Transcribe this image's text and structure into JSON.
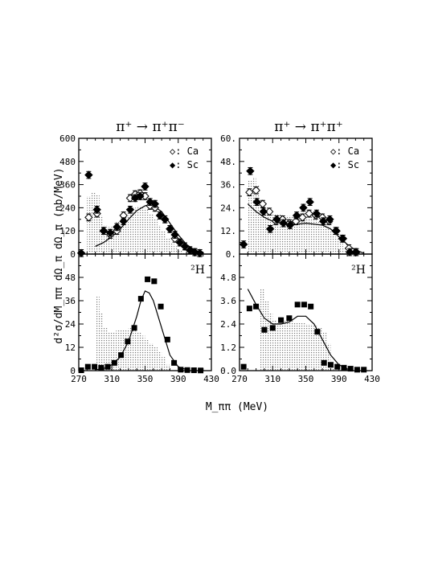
{
  "chart_data": [
    {
      "type": "scatter",
      "panel": "top-left",
      "title": "π⁺ → π⁺π⁻",
      "x_range": [
        270,
        430
      ],
      "ylim": [
        0,
        600
      ],
      "y_ticks": [
        0,
        120,
        240,
        360,
        480,
        600
      ],
      "legend": [
        "◇: Ca",
        "◆: Sc"
      ],
      "legend_placement": "top-right",
      "series": [
        {
          "name": "Ca",
          "marker": "open-diamond",
          "x": [
            282,
            292,
            300,
            308,
            316,
            324,
            332,
            338,
            344,
            350,
            356,
            362,
            368,
            374,
            380,
            386,
            392,
            398,
            404,
            410,
            416
          ],
          "y": [
            190,
            210,
            120,
            100,
            120,
            200,
            290,
            310,
            315,
            300,
            250,
            240,
            200,
            180,
            130,
            80,
            60,
            40,
            20,
            10,
            5
          ]
        },
        {
          "name": "Sc",
          "marker": "filled-diamond",
          "x": [
            273,
            282,
            292,
            300,
            308,
            316,
            324,
            332,
            338,
            344,
            350,
            356,
            362,
            368,
            374,
            380,
            386,
            392,
            398,
            404,
            410,
            416
          ],
          "y": [
            5,
            410,
            230,
            120,
            110,
            140,
            170,
            230,
            290,
            300,
            350,
            270,
            260,
            200,
            180,
            130,
            100,
            60,
            40,
            20,
            10,
            5
          ]
        }
      ],
      "curve": {
        "x": [
          290,
          300,
          310,
          320,
          330,
          340,
          350,
          355,
          360,
          370,
          380,
          390,
          400,
          410,
          420
        ],
        "y": [
          40,
          60,
          90,
          130,
          180,
          225,
          250,
          255,
          250,
          220,
          160,
          100,
          50,
          20,
          5
        ]
      },
      "histogram": {
        "x": [
          280,
          285,
          290,
          295,
          300,
          305,
          310,
          315,
          320,
          325,
          330,
          335,
          340,
          345,
          350,
          355,
          360,
          365,
          370,
          375,
          380,
          385,
          390,
          395,
          400,
          405
        ],
        "y": [
          300,
          320,
          310,
          200,
          150,
          140,
          150,
          170,
          180,
          200,
          220,
          240,
          250,
          240,
          230,
          210,
          180,
          150,
          120,
          80,
          60,
          40,
          20,
          10,
          5,
          0
        ]
      }
    },
    {
      "type": "scatter",
      "panel": "top-right",
      "title": "π⁺ → π⁺π⁺",
      "x_range": [
        270,
        430
      ],
      "ylim": [
        0,
        60
      ],
      "y_ticks": [
        "0.",
        "12.",
        "24.",
        "36.",
        "48.",
        "60."
      ],
      "legend": [
        "◇: Ca",
        "◆: Sc"
      ],
      "legend_placement": "top-right",
      "series": [
        {
          "name": "Ca",
          "marker": "open-diamond",
          "x": [
            282,
            290,
            298,
            306,
            314,
            322,
            330,
            338,
            346,
            354,
            362,
            370,
            378,
            386,
            394,
            402,
            410
          ],
          "y": [
            32,
            33,
            26,
            22,
            17,
            18,
            16,
            17,
            19,
            21,
            20,
            19,
            17,
            12,
            8,
            3,
            1
          ]
        },
        {
          "name": "Sc",
          "marker": "filled-diamond",
          "x": [
            275,
            283,
            291,
            299,
            307,
            315,
            323,
            331,
            339,
            347,
            355,
            363,
            371,
            379,
            387,
            395,
            403,
            411
          ],
          "y": [
            5,
            43,
            27,
            22,
            13,
            18,
            16,
            15,
            20,
            24,
            27,
            21,
            17,
            18,
            12,
            8,
            1,
            1
          ]
        }
      ],
      "curve": {
        "x": [
          280,
          290,
          300,
          310,
          320,
          330,
          340,
          350,
          360,
          370,
          380,
          390,
          400,
          410,
          420
        ],
        "y": [
          26,
          22,
          19,
          17,
          16,
          15.5,
          15.5,
          16,
          15.5,
          15,
          13,
          9,
          5,
          2,
          0.5
        ]
      },
      "histogram": {
        "x": [
          280,
          285,
          290,
          295,
          300,
          305,
          310,
          315,
          320,
          325,
          330,
          335,
          340,
          345,
          350,
          355,
          360,
          365,
          370,
          375,
          380,
          385,
          390,
          395,
          400,
          405
        ],
        "y": [
          38,
          40,
          36,
          26,
          22,
          21,
          21,
          21,
          20,
          20,
          20,
          20,
          19,
          19,
          19,
          19,
          18,
          17,
          16,
          14,
          12,
          9,
          6,
          3,
          1,
          0
        ]
      }
    },
    {
      "type": "scatter",
      "panel": "bottom-left",
      "annotation": "²H",
      "xlim": [
        270,
        430
      ],
      "x_ticks": [
        270,
        310,
        350,
        390,
        430
      ],
      "ylim": [
        0,
        60
      ],
      "y_ticks": [
        0,
        12,
        24,
        36,
        48
      ],
      "series": [
        {
          "name": "²H",
          "marker": "filled-square",
          "x": [
            273,
            281,
            289,
            297,
            305,
            313,
            321,
            329,
            337,
            345,
            353,
            361,
            369,
            377,
            385,
            393,
            401,
            409,
            417
          ],
          "y": [
            0.2,
            2,
            2,
            1.5,
            2,
            4,
            8,
            15,
            22,
            37,
            47,
            46,
            33,
            16,
            4,
            0.5,
            0.3,
            0.2,
            0.1
          ]
        }
      ],
      "curve": {
        "x": [
          290,
          300,
          310,
          320,
          330,
          340,
          345,
          350,
          355,
          360,
          370,
          380,
          390,
          400
        ],
        "y": [
          0.5,
          1,
          3,
          7,
          15,
          28,
          36,
          41,
          40,
          36,
          22,
          8,
          2,
          0.5
        ]
      },
      "histogram": {
        "x": [
          290,
          295,
          300,
          305,
          310,
          315,
          320,
          325,
          330,
          335,
          340,
          345,
          350,
          355,
          360,
          365,
          370,
          375
        ],
        "y": [
          38,
          30,
          22,
          20,
          20,
          21,
          21,
          21,
          22,
          22,
          20,
          18,
          16,
          14,
          12,
          10,
          7,
          3
        ]
      }
    },
    {
      "type": "scatter",
      "panel": "bottom-right",
      "annotation": "²H",
      "xlim": [
        270,
        430
      ],
      "x_ticks": [
        270,
        310,
        350,
        390,
        430
      ],
      "ylim": [
        0,
        6
      ],
      "y_ticks": [
        "0.0",
        "1.2",
        "2.4",
        "3.6",
        "4.8"
      ],
      "series": [
        {
          "name": "²H",
          "marker": "filled-square",
          "x": [
            275,
            282,
            290,
            300,
            310,
            320,
            330,
            340,
            348,
            356,
            364,
            372,
            380,
            388,
            396,
            404,
            412,
            420
          ],
          "y": [
            0.2,
            3.2,
            3.3,
            2.1,
            2.2,
            2.6,
            2.7,
            3.4,
            3.4,
            3.3,
            2.0,
            0.4,
            0.3,
            0.2,
            0.15,
            0.1,
            0.05,
            0.05
          ]
        }
      ],
      "curve": {
        "x": [
          280,
          290,
          300,
          310,
          320,
          330,
          340,
          350,
          360,
          370,
          380,
          390,
          400
        ],
        "y": [
          4.2,
          3.4,
          2.7,
          2.4,
          2.4,
          2.5,
          2.8,
          2.8,
          2.4,
          1.6,
          0.8,
          0.3,
          0.1
        ]
      },
      "histogram": {
        "x": [
          295,
          300,
          305,
          310,
          315,
          320,
          325,
          330,
          335,
          340,
          345,
          350,
          355,
          360,
          365,
          370,
          375,
          380
        ],
        "y": [
          4.2,
          3.6,
          3.0,
          2.6,
          2.5,
          2.6,
          2.6,
          2.6,
          2.5,
          2.5,
          2.5,
          2.4,
          2.4,
          2.3,
          2.2,
          2.0,
          1.4,
          0.4
        ]
      }
    }
  ],
  "xlabel": "M_ππ (MeV)",
  "ylabel": "d²σ/dM_ππ dΩ_π dΩ_π (nb/MeV)"
}
